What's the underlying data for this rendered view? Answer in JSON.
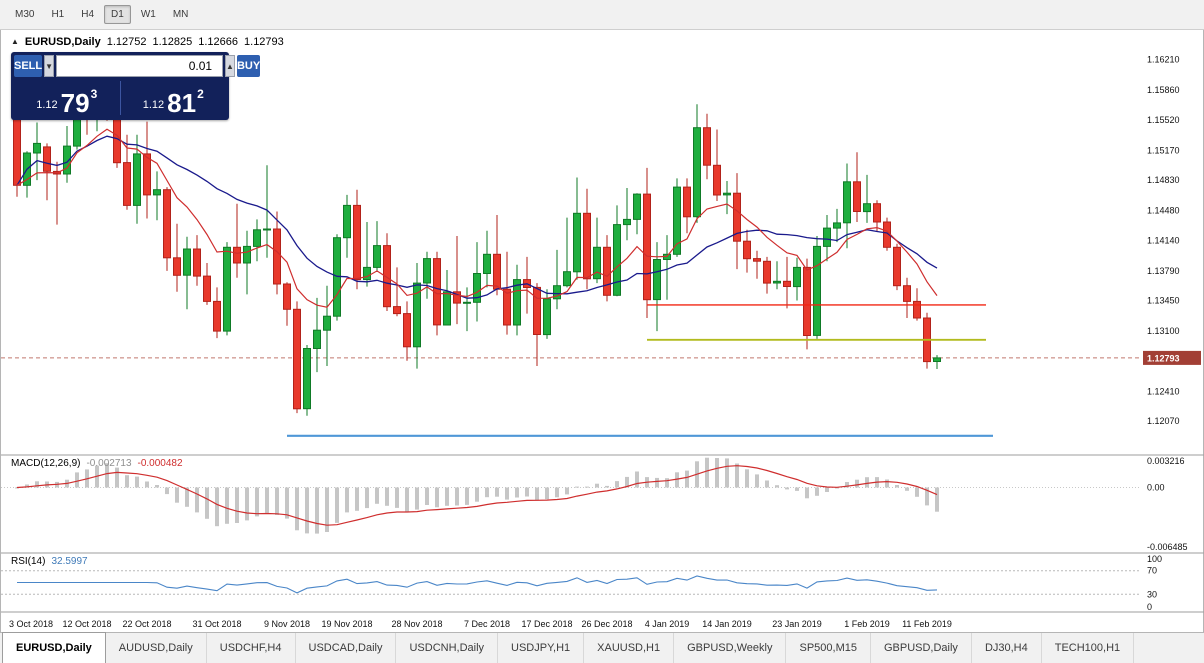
{
  "colors": {
    "up_candle": "#1fae3f",
    "up_candle_border": "#0f7a26",
    "down_candle": "#e8392c",
    "down_candle_border": "#b2221a",
    "ma_fast": "#cf2e2e",
    "ma_slow": "#1a1a8c",
    "macd_histogram": "#c6c6c6",
    "macd_signal": "#cf2e2e",
    "rsi_line": "#4a86c8",
    "price_badge_bg": "#a23f35",
    "bid_line": "#b2564a"
  },
  "toolbar": {
    "timeframes": [
      {
        "label": "M30",
        "active": false
      },
      {
        "label": "H1",
        "active": false
      },
      {
        "label": "H4",
        "active": false
      },
      {
        "label": "D1",
        "active": true
      },
      {
        "label": "W1",
        "active": false
      },
      {
        "label": "MN",
        "active": false
      }
    ]
  },
  "chart_header": {
    "window_icon": "▲",
    "symbol": "EURUSD,Daily",
    "open": "1.12752",
    "high": "1.12825",
    "low": "1.12666",
    "close": "1.12793"
  },
  "trade_panel": {
    "sell_label": "SELL",
    "buy_label": "BUY",
    "volume": "0.01",
    "spinner_down": "▼",
    "spinner_up": "▲",
    "sell_price_prefix": "1.12",
    "sell_price_big": "79",
    "sell_price_sup": "3",
    "buy_price_prefix": "1.12",
    "buy_price_big": "81",
    "buy_price_sup": "2"
  },
  "price_axis": {
    "ticks": [
      {
        "label": "1.16210",
        "value": 1.1621
      },
      {
        "label": "1.15860",
        "value": 1.1586
      },
      {
        "label": "1.15520",
        "value": 1.1552
      },
      {
        "label": "1.15170",
        "value": 1.1517
      },
      {
        "label": "1.14830",
        "value": 1.1483
      },
      {
        "label": "1.14480",
        "value": 1.1448
      },
      {
        "label": "1.14140",
        "value": 1.1414
      },
      {
        "label": "1.13790",
        "value": 1.1379
      },
      {
        "label": "1.13450",
        "value": 1.1345
      },
      {
        "label": "1.13100",
        "value": 1.131
      },
      {
        "label": "1.12410",
        "value": 1.1241
      },
      {
        "label": "1.12070",
        "value": 1.1207
      }
    ],
    "current": {
      "label": "1.12793",
      "value": 1.12793
    }
  },
  "indicators": {
    "macd": {
      "label": "MACD(12,26,9)",
      "value_main": "-0.002713",
      "value_signal": "-0.000482",
      "fast": 12,
      "slow": 26,
      "signal": 9,
      "ylim": [
        -0.006485,
        0.003216
      ],
      "axis_labels": [
        {
          "text": "0.003216",
          "value": 0.003216
        },
        {
          "text": "0.00",
          "value": 0
        },
        {
          "text": "-0.006485",
          "value": -0.006485
        }
      ]
    },
    "rsi": {
      "label": "RSI(14)",
      "value": "32.5997",
      "period": 14,
      "ylim": [
        0,
        100
      ],
      "levels": [
        {
          "text": "100",
          "value": 100
        },
        {
          "text": "70",
          "value": 70
        },
        {
          "text": "30",
          "value": 30
        },
        {
          "text": "0",
          "value": 0
        }
      ],
      "dashed_levels": [
        70,
        30
      ]
    }
  },
  "tabs": [
    {
      "label": "EURUSD,Daily",
      "active": true
    },
    {
      "label": "AUDUSD,Daily",
      "active": false
    },
    {
      "label": "USDCHF,H4",
      "active": false
    },
    {
      "label": "USDCAD,Daily",
      "active": false
    },
    {
      "label": "USDCNH,Daily",
      "active": false
    },
    {
      "label": "USDJPY,H1",
      "active": false
    },
    {
      "label": "XAUUSD,H1",
      "active": false
    },
    {
      "label": "GBPUSD,Weekly",
      "active": false
    },
    {
      "label": "SP500,M15",
      "active": false
    },
    {
      "label": "GBPUSD,Daily",
      "active": false
    },
    {
      "label": "DJ30,H4",
      "active": false
    },
    {
      "label": "TECH100,H1",
      "active": false
    }
  ],
  "chart_data": {
    "type": "candlestick",
    "title": "EURUSD Daily",
    "symbol": "EURUSD",
    "timeframe": "Daily",
    "ylim": [
      1.1168,
      1.1655
    ],
    "overlays": [
      {
        "name": "ma-fast-red",
        "type": "ema",
        "period": 10
      },
      {
        "name": "ma-slow-navy",
        "type": "sma",
        "period": 20
      }
    ],
    "hlines": [
      {
        "name": "resistance-line-red",
        "price": 1.134,
        "color": "#f22613",
        "width": 1.4,
        "from_index": 63,
        "to_x": 985
      },
      {
        "name": "support-line-yellow",
        "price": 1.13,
        "color": "#b2bb1e",
        "width": 1.8,
        "from_index": 63,
        "to_x": 985
      },
      {
        "name": "support-line-blue",
        "price": 1.119,
        "color": "#4f97d7",
        "width": 2.2,
        "from_index": 27,
        "to_x": 992
      }
    ],
    "x_labels": [
      {
        "text": "3 Oct 2018",
        "index": 0
      },
      {
        "text": "12 Oct 2018",
        "index": 7
      },
      {
        "text": "22 Oct 2018",
        "index": 13
      },
      {
        "text": "31 Oct 2018",
        "index": 20
      },
      {
        "text": "9 Nov 2018",
        "index": 27
      },
      {
        "text": "19 Nov 2018",
        "index": 33
      },
      {
        "text": "28 Nov 2018",
        "index": 40
      },
      {
        "text": "7 Dec 2018",
        "index": 47
      },
      {
        "text": "17 Dec 2018",
        "index": 53
      },
      {
        "text": "26 Dec 2018",
        "index": 59
      },
      {
        "text": "4 Jan 2019",
        "index": 65
      },
      {
        "text": "14 Jan 2019",
        "index": 71
      },
      {
        "text": "23 Jan 2019",
        "index": 78
      },
      {
        "text": "1 Feb 2019",
        "index": 85
      },
      {
        "text": "11 Feb 2019",
        "index": 91
      }
    ],
    "candles": [
      [
        "2018-10-03",
        1.1578,
        1.1585,
        1.1464,
        1.1477
      ],
      [
        "2018-10-04",
        1.1477,
        1.1516,
        1.1463,
        1.1514
      ],
      [
        "2018-10-05",
        1.1514,
        1.1549,
        1.1483,
        1.1525
      ],
      [
        "2018-10-08",
        1.1521,
        1.1525,
        1.146,
        1.1493
      ],
      [
        "2018-10-09",
        1.1493,
        1.1504,
        1.1432,
        1.149
      ],
      [
        "2018-10-10",
        1.149,
        1.1545,
        1.148,
        1.1522
      ],
      [
        "2018-10-11",
        1.1522,
        1.1599,
        1.1518,
        1.1593
      ],
      [
        "2018-10-12",
        1.1593,
        1.1611,
        1.1535,
        1.1561
      ],
      [
        "2018-10-15",
        1.1561,
        1.1606,
        1.1539,
        1.158
      ],
      [
        "2018-10-16",
        1.158,
        1.1589,
        1.1551,
        1.1578
      ],
      [
        "2018-10-17",
        1.1578,
        1.1581,
        1.1497,
        1.1503
      ],
      [
        "2018-10-18",
        1.1503,
        1.1535,
        1.1449,
        1.1454
      ],
      [
        "2018-10-19",
        1.1454,
        1.1535,
        1.1433,
        1.1513
      ],
      [
        "2018-10-22",
        1.1513,
        1.155,
        1.1439,
        1.1466
      ],
      [
        "2018-10-23",
        1.1466,
        1.1493,
        1.1437,
        1.1472
      ],
      [
        "2018-10-24",
        1.1472,
        1.1475,
        1.1379,
        1.1394
      ],
      [
        "2018-10-25",
        1.1394,
        1.1433,
        1.1355,
        1.1374
      ],
      [
        "2018-10-26",
        1.1374,
        1.1418,
        1.1335,
        1.1404
      ],
      [
        "2018-10-29",
        1.1404,
        1.142,
        1.1362,
        1.1373
      ],
      [
        "2018-10-30",
        1.1373,
        1.1388,
        1.134,
        1.1344
      ],
      [
        "2018-10-31",
        1.1344,
        1.136,
        1.1302,
        1.131
      ],
      [
        "2018-11-01",
        1.131,
        1.1412,
        1.1305,
        1.1406
      ],
      [
        "2018-11-02",
        1.1406,
        1.1456,
        1.1371,
        1.1388
      ],
      [
        "2018-11-05",
        1.1388,
        1.1425,
        1.1352,
        1.1407
      ],
      [
        "2018-11-06",
        1.1407,
        1.1438,
        1.139,
        1.1426
      ],
      [
        "2018-11-07",
        1.1426,
        1.15,
        1.1394,
        1.1427
      ],
      [
        "2018-11-08",
        1.1427,
        1.1447,
        1.1352,
        1.1364
      ],
      [
        "2018-11-09",
        1.1364,
        1.1366,
        1.1316,
        1.1335
      ],
      [
        "2018-11-12",
        1.1335,
        1.1344,
        1.1216,
        1.1221
      ],
      [
        "2018-11-13",
        1.1221,
        1.1294,
        1.1213,
        1.129
      ],
      [
        "2018-11-14",
        1.129,
        1.1348,
        1.1263,
        1.1311
      ],
      [
        "2018-11-15",
        1.1311,
        1.1362,
        1.127,
        1.1327
      ],
      [
        "2018-11-16",
        1.1327,
        1.1421,
        1.1322,
        1.1417
      ],
      [
        "2018-11-19",
        1.1417,
        1.1466,
        1.1394,
        1.1454
      ],
      [
        "2018-11-20",
        1.1454,
        1.1472,
        1.1358,
        1.1369
      ],
      [
        "2018-11-21",
        1.1369,
        1.1435,
        1.1361,
        1.1383
      ],
      [
        "2018-11-22",
        1.1383,
        1.1436,
        1.1378,
        1.1408
      ],
      [
        "2018-11-23",
        1.1408,
        1.1422,
        1.1333,
        1.1338
      ],
      [
        "2018-11-26",
        1.1338,
        1.1383,
        1.1327,
        1.133
      ],
      [
        "2018-11-27",
        1.133,
        1.1344,
        1.1276,
        1.1292
      ],
      [
        "2018-11-28",
        1.1292,
        1.1388,
        1.1267,
        1.1365
      ],
      [
        "2018-11-29",
        1.1365,
        1.1401,
        1.1347,
        1.1393
      ],
      [
        "2018-11-30",
        1.1393,
        1.1401,
        1.1305,
        1.1317
      ],
      [
        "2018-12-03",
        1.1317,
        1.138,
        1.1317,
        1.1355
      ],
      [
        "2018-12-04",
        1.1355,
        1.1419,
        1.1318,
        1.1342
      ],
      [
        "2018-12-05",
        1.1342,
        1.136,
        1.131,
        1.1343
      ],
      [
        "2018-12-06",
        1.1343,
        1.1412,
        1.1321,
        1.1376
      ],
      [
        "2018-12-07",
        1.1376,
        1.1425,
        1.136,
        1.1398
      ],
      [
        "2018-12-10",
        1.1398,
        1.1443,
        1.1351,
        1.1358
      ],
      [
        "2018-12-11",
        1.1358,
        1.1401,
        1.1306,
        1.1317
      ],
      [
        "2018-12-12",
        1.1317,
        1.1386,
        1.1305,
        1.1369
      ],
      [
        "2018-12-13",
        1.1369,
        1.1395,
        1.133,
        1.136
      ],
      [
        "2018-12-14",
        1.136,
        1.1365,
        1.127,
        1.1306
      ],
      [
        "2018-12-17",
        1.1306,
        1.1358,
        1.1301,
        1.1347
      ],
      [
        "2018-12-18",
        1.1347,
        1.1403,
        1.1335,
        1.1362
      ],
      [
        "2018-12-19",
        1.1362,
        1.144,
        1.136,
        1.1378
      ],
      [
        "2018-12-20",
        1.1378,
        1.1486,
        1.1369,
        1.1445
      ],
      [
        "2018-12-21",
        1.1445,
        1.1473,
        1.1358,
        1.137
      ],
      [
        "2018-12-24",
        1.137,
        1.144,
        1.1365,
        1.1406
      ],
      [
        "2018-12-26",
        1.1406,
        1.142,
        1.1344,
        1.1351
      ],
      [
        "2018-12-27",
        1.1351,
        1.1454,
        1.135,
        1.1432
      ],
      [
        "2018-12-28",
        1.1432,
        1.1474,
        1.1414,
        1.1438
      ],
      [
        "2018-12-31",
        1.1438,
        1.1468,
        1.1421,
        1.1467
      ],
      [
        "2019-01-02",
        1.1467,
        1.1497,
        1.1325,
        1.1346
      ],
      [
        "2019-01-03",
        1.1346,
        1.1412,
        1.131,
        1.1392
      ],
      [
        "2019-01-04",
        1.1392,
        1.142,
        1.1346,
        1.1398
      ],
      [
        "2019-01-07",
        1.1398,
        1.1485,
        1.1395,
        1.1475
      ],
      [
        "2019-01-08",
        1.1475,
        1.1485,
        1.1422,
        1.1441
      ],
      [
        "2019-01-09",
        1.1441,
        1.157,
        1.1434,
        1.1543
      ],
      [
        "2019-01-10",
        1.1543,
        1.1559,
        1.1484,
        1.15
      ],
      [
        "2019-01-11",
        1.15,
        1.1541,
        1.1459,
        1.1466
      ],
      [
        "2019-01-14",
        1.1466,
        1.1482,
        1.1444,
        1.1468
      ],
      [
        "2019-01-15",
        1.1468,
        1.1491,
        1.1381,
        1.1413
      ],
      [
        "2019-01-16",
        1.1413,
        1.1426,
        1.1377,
        1.1393
      ],
      [
        "2019-01-17",
        1.1393,
        1.1402,
        1.137,
        1.139
      ],
      [
        "2019-01-18",
        1.139,
        1.1395,
        1.1353,
        1.1365
      ],
      [
        "2019-01-21",
        1.1365,
        1.139,
        1.1358,
        1.1367
      ],
      [
        "2019-01-22",
        1.1367,
        1.1395,
        1.1336,
        1.1361
      ],
      [
        "2019-01-23",
        1.1361,
        1.1394,
        1.1345,
        1.1383
      ],
      [
        "2019-01-24",
        1.1383,
        1.1393,
        1.1289,
        1.1305
      ],
      [
        "2019-01-25",
        1.1305,
        1.1419,
        1.1301,
        1.1407
      ],
      [
        "2019-01-28",
        1.1407,
        1.1443,
        1.139,
        1.1428
      ],
      [
        "2019-01-29",
        1.1428,
        1.145,
        1.1412,
        1.1434
      ],
      [
        "2019-01-30",
        1.1434,
        1.1502,
        1.1405,
        1.1481
      ],
      [
        "2019-01-31",
        1.1481,
        1.1515,
        1.1435,
        1.1447
      ],
      [
        "2019-02-01",
        1.1447,
        1.1489,
        1.1434,
        1.1456
      ],
      [
        "2019-02-04",
        1.1456,
        1.146,
        1.1424,
        1.1435
      ],
      [
        "2019-02-05",
        1.1435,
        1.144,
        1.1402,
        1.1406
      ],
      [
        "2019-02-06",
        1.1406,
        1.141,
        1.1357,
        1.1362
      ],
      [
        "2019-02-07",
        1.1362,
        1.1371,
        1.1325,
        1.1344
      ],
      [
        "2019-02-08",
        1.1344,
        1.1359,
        1.1322,
        1.1325
      ],
      [
        "2019-02-11",
        1.1325,
        1.1331,
        1.1267,
        1.1275
      ],
      [
        "2019-02-12",
        1.12752,
        1.12825,
        1.12666,
        1.12793
      ]
    ]
  }
}
